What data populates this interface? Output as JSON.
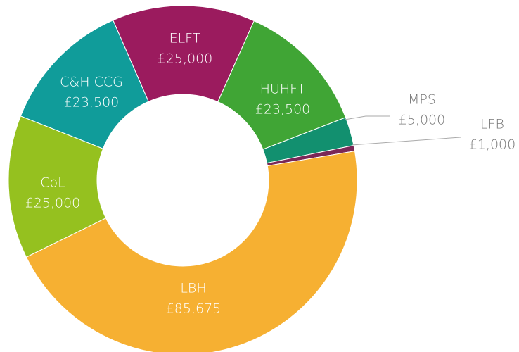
{
  "chart_data": {
    "type": "pie",
    "categories": [
      "ELFT",
      "HUHFT",
      "MPS",
      "LFB",
      "LBH",
      "CoL",
      "C&H CCG"
    ],
    "values": [
      25000,
      23500,
      5000,
      1000,
      85675,
      25000,
      23500
    ],
    "value_labels": [
      "£25,000",
      "£23,500",
      "£5,000",
      "£1,000",
      "£85,675",
      "£25,000",
      "£23,500"
    ],
    "colors": [
      "#9b1b5e",
      "#40a535",
      "#12906f",
      "#7a2857",
      "#f6b032",
      "#95c11f",
      "#109c9a"
    ]
  }
}
